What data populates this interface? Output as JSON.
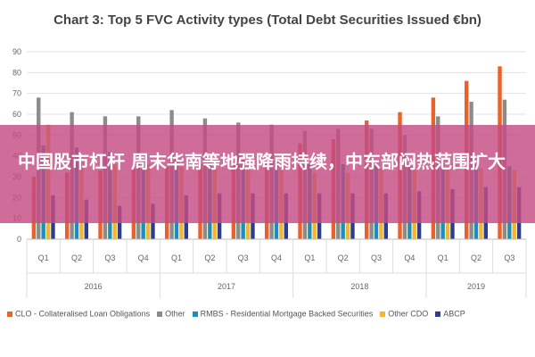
{
  "chart_data": {
    "type": "bar",
    "title": "Chart 3: Top 5 FVC Activity types (Total Debt Securities Issued €bn)",
    "xlabel": "",
    "ylabel": "",
    "ylim": [
      0,
      90
    ],
    "yticks": [
      0,
      10,
      20,
      30,
      40,
      50,
      60,
      70,
      80,
      90
    ],
    "grid": true,
    "legend_position": "bottom",
    "categories": [
      "Q1",
      "Q2",
      "Q3",
      "Q4",
      "Q1",
      "Q2",
      "Q3",
      "Q4",
      "Q1",
      "Q2",
      "Q3",
      "Q4",
      "Q1",
      "Q2",
      "Q3"
    ],
    "years": [
      {
        "label": "2016",
        "span": 4
      },
      {
        "label": "2017",
        "span": 4
      },
      {
        "label": "2018",
        "span": 4
      },
      {
        "label": "2019",
        "span": 3
      }
    ],
    "series": [
      {
        "name": "CLO - Collateralised Loan Obligations",
        "color": "#E8622A",
        "values": [
          30,
          32,
          33,
          34,
          35,
          36,
          37,
          40,
          46,
          48,
          57,
          61,
          68,
          76,
          83
        ]
      },
      {
        "name": "Other",
        "color": "#8C8C8C",
        "values": [
          68,
          61,
          59,
          59,
          62,
          58,
          56,
          55,
          52,
          53,
          53,
          50,
          59,
          66,
          67
        ]
      },
      {
        "name": "RMBS - Residential Mortgage Backed Securities",
        "color": "#1F8FB6",
        "values": [
          45,
          44,
          42,
          40,
          40,
          39,
          38,
          38,
          37,
          36,
          35,
          35,
          35,
          36,
          35
        ]
      },
      {
        "name": "Other CDO",
        "color": "#F2B632",
        "values": [
          55,
          38,
          36,
          36,
          35,
          34,
          33,
          33,
          32,
          32,
          34,
          33,
          34,
          34,
          33
        ]
      },
      {
        "name": "ABCP",
        "color": "#2E3E8C",
        "values": [
          21,
          19,
          16,
          17,
          21,
          22,
          22,
          22,
          22,
          22,
          22,
          23,
          24,
          25,
          25
        ]
      }
    ]
  },
  "overlay": {
    "headline": "中国股市杠杆 周末华南等地强降雨持续，中东部闷热范围扩大"
  }
}
